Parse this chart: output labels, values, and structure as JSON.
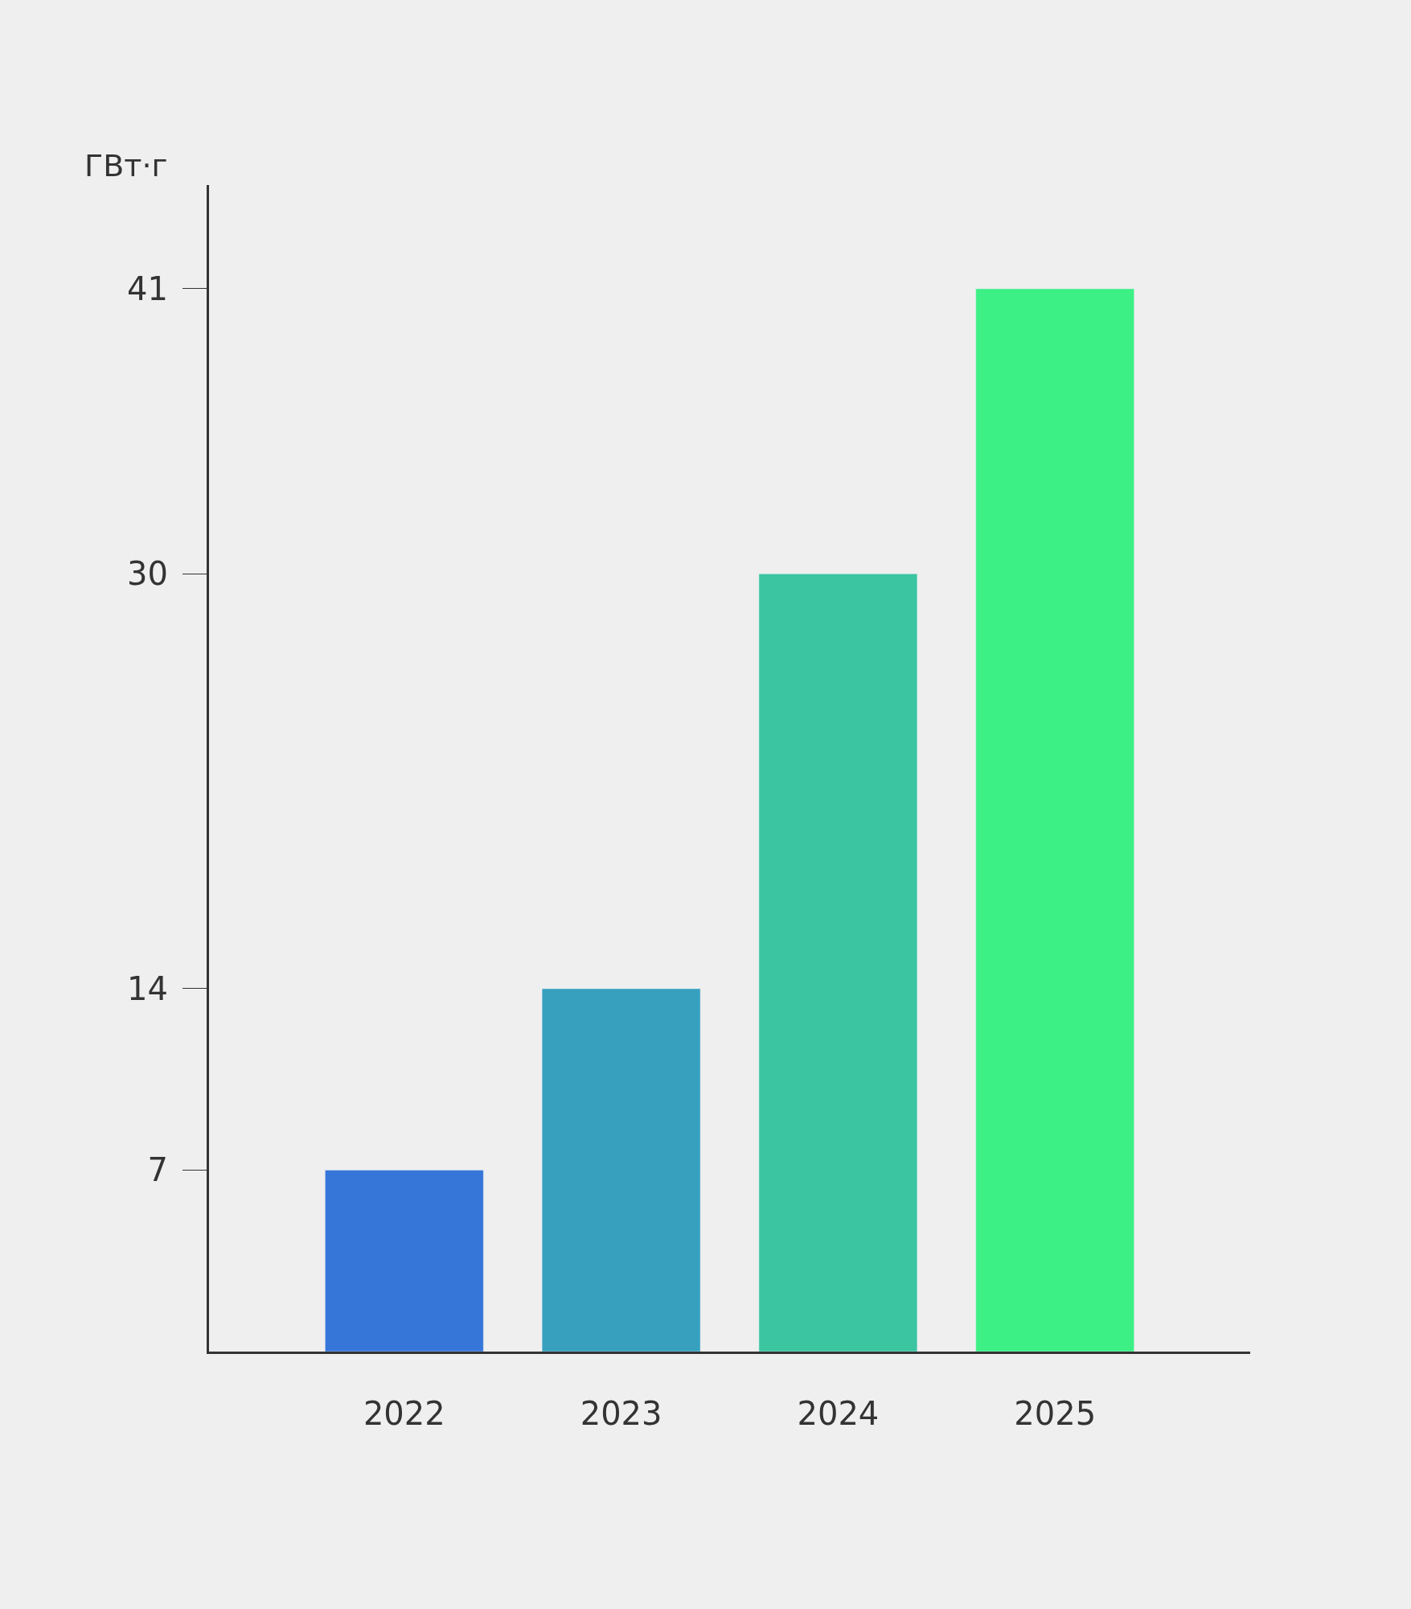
{
  "chart_data": {
    "type": "bar",
    "ylabel": "ГВт·г",
    "categories": [
      "2022",
      "2023",
      "2024",
      "2025"
    ],
    "values": [
      7,
      14,
      30,
      41
    ],
    "colors": [
      "#3676d8",
      "#37a0bf",
      "#3bc5a0",
      "#3cf085"
    ],
    "ylim": [
      0,
      45
    ],
    "yticks": [
      7,
      14,
      30,
      41
    ],
    "grid": false
  }
}
